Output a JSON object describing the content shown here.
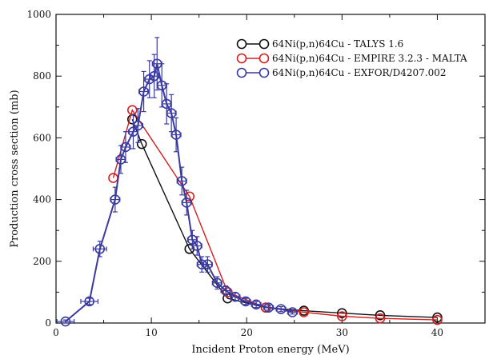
{
  "chart_data": {
    "type": "line",
    "xlabel": "Incident Proton energy (MeV)",
    "ylabel": "Production cross section (mb)",
    "xlim": [
      0,
      45
    ],
    "ylim": [
      0,
      1000
    ],
    "xticks": [
      0,
      10,
      20,
      30,
      40
    ],
    "yticks": [
      0,
      200,
      400,
      600,
      800,
      1000
    ],
    "grid": false,
    "legend_position": "top-right",
    "series": [
      {
        "name": "64Ni(p,n)64Cu - TALYS 1.6",
        "color": "#111111",
        "marker": "circle",
        "x": [
          8,
          9,
          14,
          18,
          22,
          26,
          30,
          34,
          40
        ],
        "y": [
          660,
          580,
          240,
          80,
          50,
          40,
          32,
          25,
          18
        ]
      },
      {
        "name": "64Ni(p,n)64Cu - EMPIRE 3.2.3 - MALTA",
        "color": "#d62020",
        "marker": "circle",
        "x": [
          6,
          8,
          14,
          18,
          22,
          26,
          30,
          34,
          40
        ],
        "y": [
          470,
          690,
          410,
          100,
          50,
          35,
          22,
          15,
          10
        ]
      },
      {
        "name": "64Ni(p,n)64Cu - EXFOR/D4207.002",
        "color": "#3a3aa0",
        "marker": "circle",
        "errorbars": true,
        "x": [
          1.0,
          3.5,
          4.6,
          6.2,
          6.8,
          7.3,
          8.1,
          8.6,
          9.2,
          9.8,
          10.3,
          10.6,
          11.1,
          11.6,
          12.1,
          12.6,
          13.2,
          13.7,
          14.3,
          14.8,
          15.3,
          15.9,
          16.9,
          17.8,
          18.8,
          19.9,
          21.0,
          22.3,
          23.6,
          24.8
        ],
        "y": [
          5,
          70,
          240,
          400,
          530,
          570,
          620,
          640,
          750,
          790,
          800,
          840,
          770,
          710,
          680,
          610,
          460,
          390,
          270,
          250,
          190,
          190,
          130,
          105,
          85,
          70,
          60,
          50,
          45,
          35
        ],
        "xerr": [
          0.9,
          0.9,
          0.7,
          0.5,
          0.5,
          0.5,
          0.5,
          0.5,
          0.5,
          0.5,
          0.5,
          0.5,
          0.5,
          0.5,
          0.5,
          0.5,
          0.5,
          0.5,
          0.5,
          0.5,
          0.5,
          0.5,
          0.5,
          0.5,
          0.5,
          0.5,
          0.5,
          0.5,
          0.5,
          0.5
        ],
        "yerr": [
          5,
          10,
          25,
          40,
          45,
          50,
          55,
          55,
          65,
          60,
          70,
          85,
          70,
          65,
          60,
          55,
          45,
          40,
          30,
          30,
          25,
          25,
          20,
          15,
          12,
          10,
          10,
          8,
          8,
          6
        ]
      }
    ]
  }
}
